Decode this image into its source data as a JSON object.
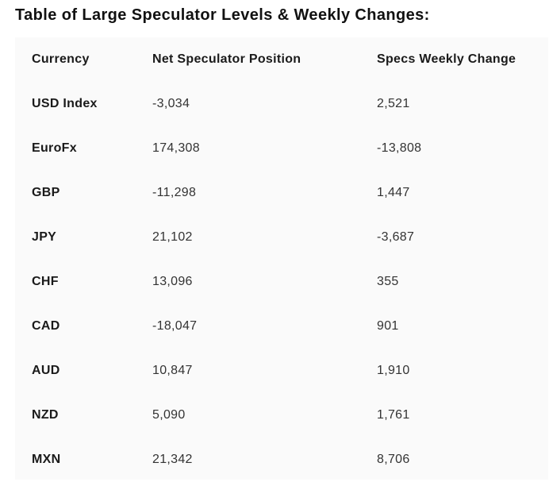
{
  "title": "Table of Large Speculator Levels & Weekly Changes:",
  "table": {
    "headers": [
      "Currency",
      "Net Speculator Position",
      "Specs Weekly Change"
    ],
    "rows": [
      [
        "USD Index",
        "-3,034",
        "2,521"
      ],
      [
        "EuroFx",
        "174,308",
        "-13,808"
      ],
      [
        "GBP",
        "-11,298",
        "1,447"
      ],
      [
        "JPY",
        "21,102",
        "-3,687"
      ],
      [
        "CHF",
        "13,096",
        "355"
      ],
      [
        "CAD",
        "-18,047",
        "901"
      ],
      [
        "AUD",
        "10,847",
        "1,910"
      ],
      [
        "NZD",
        "5,090",
        "1,761"
      ],
      [
        "MXN",
        "21,342",
        "8,706"
      ]
    ]
  },
  "colors": {
    "panel_background": "#fafafa",
    "text": "#1a1a1a"
  }
}
